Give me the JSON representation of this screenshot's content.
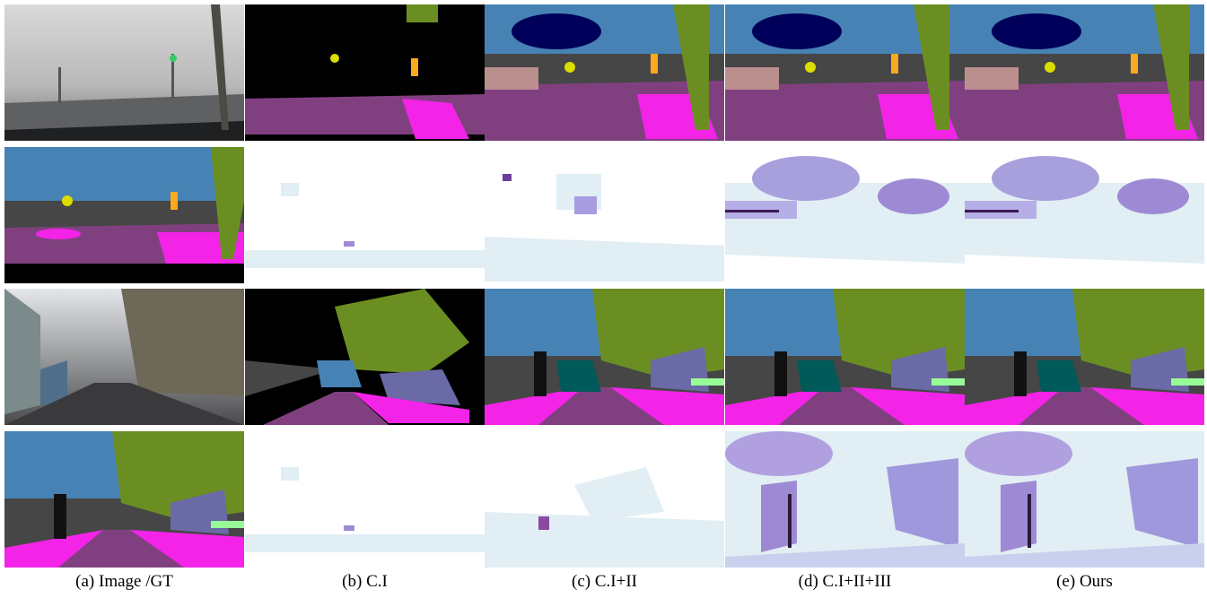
{
  "captions": [
    "(a) Image /GT",
    "(b) C.I",
    "(c) C.I+II",
    "(d) C.I+II+III",
    "(e) Ours"
  ]
}
